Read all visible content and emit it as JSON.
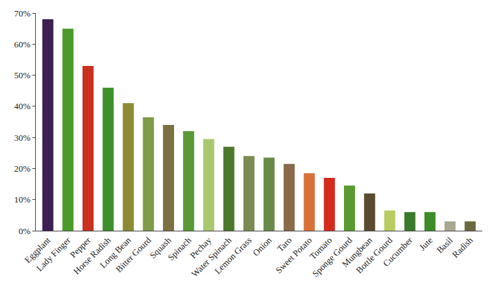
{
  "chart_data": {
    "type": "bar",
    "categories": [
      "Eggplant",
      "Lady Finger",
      "Pepper",
      "Horse Radish",
      "Long Bean",
      "Bitter Gourd",
      "Squash",
      "Spinach",
      "Pechay",
      "Water Spinach",
      "Lemon Grass",
      "Onion",
      "Taro",
      "Sweet Potato",
      "Tomato",
      "Sponge Gourd",
      "Mungbean",
      "Bottle Gourd",
      "Cucumber",
      "Jute",
      "Basil",
      "Radish"
    ],
    "values": [
      68,
      65,
      53,
      46,
      41,
      36.5,
      34,
      32,
      29.5,
      27,
      24,
      23.5,
      21.5,
      18.5,
      17,
      14.5,
      12,
      6.5,
      6,
      6,
      3,
      3
    ],
    "colors": [
      "#3d1f52",
      "#4c9a2a",
      "#c8321e",
      "#3f8f2c",
      "#8c8a34",
      "#7f9a48",
      "#7b7040",
      "#5a9a36",
      "#a8c870",
      "#4d7a2a",
      "#7a8a50",
      "#6a8a4a",
      "#8a6a48",
      "#d8703a",
      "#d42a1e",
      "#5a9a30",
      "#5a4a30",
      "#b8cc60",
      "#3a7a2a",
      "#3c8c28",
      "#a8a890",
      "#6a6a40"
    ],
    "ylim": [
      0,
      70
    ],
    "yticks": [
      {
        "value": 0,
        "label": "0%"
      },
      {
        "value": 10,
        "label": "10%"
      },
      {
        "value": 20,
        "label": "20%"
      },
      {
        "value": 30,
        "label": "30%"
      },
      {
        "value": 40,
        "label": "40%"
      },
      {
        "value": 50,
        "label": "50%"
      },
      {
        "value": 60,
        "label": "60%"
      },
      {
        "value": 70,
        "label": "70%"
      }
    ],
    "grid": false
  }
}
